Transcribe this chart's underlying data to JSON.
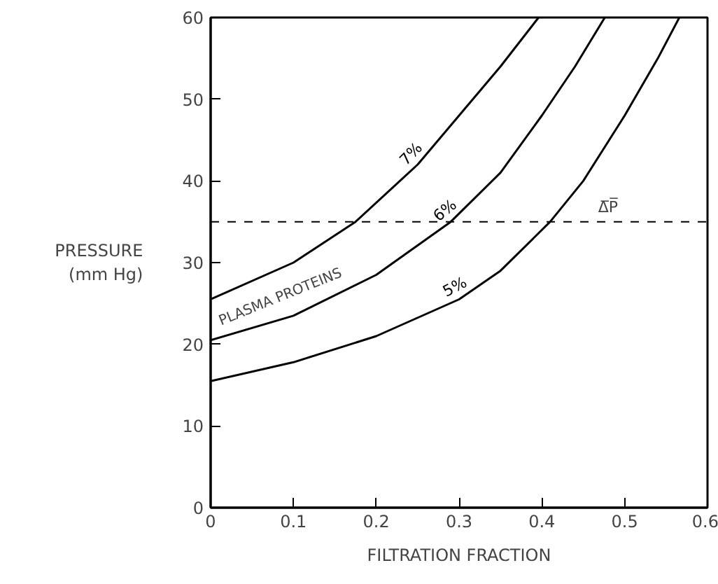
{
  "chart_data": {
    "type": "line",
    "xlabel": "FILTRATION FRACTION",
    "ylabel": "PRESSURE\n(mm Hg)",
    "xlim": [
      0,
      0.6
    ],
    "ylim": [
      0,
      60
    ],
    "xticks": [
      0,
      0.1,
      0.2,
      0.3,
      0.4,
      0.5,
      0.6
    ],
    "yticks": [
      0,
      10,
      20,
      30,
      40,
      50,
      60
    ],
    "grid": false,
    "line_style": "solid",
    "marker": "none",
    "series": [
      {
        "name": "7%",
        "color": "#000000",
        "x": [
          0,
          0.1,
          0.175,
          0.25,
          0.3,
          0.35,
          0.396
        ],
        "values": [
          25.5,
          30,
          35,
          42,
          48,
          54,
          60
        ]
      },
      {
        "name": "6%",
        "color": "#000000",
        "x": [
          0,
          0.1,
          0.2,
          0.29,
          0.35,
          0.4,
          0.44,
          0.476
        ],
        "values": [
          20.5,
          23.5,
          28.5,
          35,
          41,
          48,
          54,
          60
        ]
      },
      {
        "name": "5%",
        "color": "#000000",
        "x": [
          0,
          0.1,
          0.2,
          0.3,
          0.35,
          0.41,
          0.45,
          0.5,
          0.54,
          0.566
        ],
        "values": [
          15.5,
          17.8,
          21,
          25.5,
          29,
          35,
          40,
          48,
          55,
          60
        ]
      }
    ],
    "ref_lines": [
      {
        "axis": "y",
        "value": 35,
        "label": "Δ̅P̅",
        "line_style": "dashed",
        "color": "#000000"
      }
    ],
    "annotations": [
      "PLASMA PROTEINS"
    ]
  }
}
